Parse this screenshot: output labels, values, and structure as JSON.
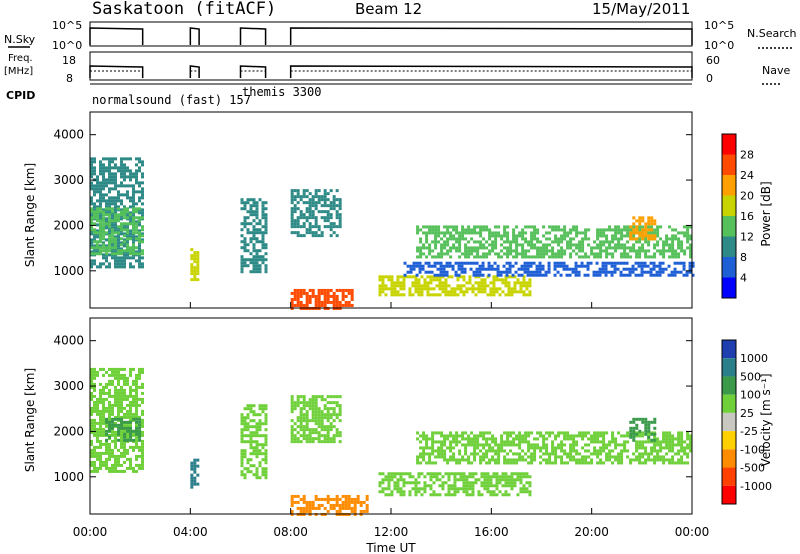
{
  "header": {
    "title": "Saskatoon (fitACF)",
    "beam": "Beam 12",
    "date": "15/May/2011"
  },
  "status_panels": {
    "nsky_label": "N.Sky",
    "nsearch_label": "N.Search",
    "freq_label_1": "Freq.",
    "freq_label_2": "[MHz]",
    "nave_label": "Nave",
    "cpid_label": "CPID",
    "left_ticks_top": [
      "10^5",
      "10^0"
    ],
    "right_ticks_top": [
      "10^5",
      "10^0"
    ],
    "left_ticks_freq": [
      "18",
      "8"
    ],
    "right_ticks_nave": [
      "60",
      "0"
    ],
    "cpid_entries": [
      {
        "label": "normalsound (fast) 157",
        "start_hour": 0.0
      },
      {
        "label": "themis 3300",
        "start_hour": 6.0
      }
    ],
    "operating_intervals": [
      [
        0.0,
        2.1
      ],
      [
        4.0,
        4.35
      ],
      [
        6.0,
        7.0
      ],
      [
        8.0,
        24.0
      ]
    ]
  },
  "chart_data": [
    {
      "type": "heatmap",
      "name": "power",
      "ylabel": "Slant Range [km]",
      "yticks": [
        1000,
        2000,
        3000,
        4000
      ],
      "ylim": [
        180,
        4500
      ],
      "xlim": [
        0,
        24
      ],
      "colorbar_label": "Power [dB]",
      "colorbar_ticks": [
        "4",
        "8",
        "12",
        "16",
        "20",
        "24",
        "28"
      ],
      "colorbar_colors": [
        "#0000ff",
        "#1f5fd6",
        "#2d8a86",
        "#56c05a",
        "#c8d400",
        "#ffa000",
        "#ff4a00",
        "#ff0000"
      ],
      "regions": [
        {
          "t": [
            0.0,
            2.1
          ],
          "r": [
            1100,
            3500
          ],
          "v": 9
        },
        {
          "t": [
            0.0,
            2.1
          ],
          "r": [
            1400,
            2400
          ],
          "v": 13
        },
        {
          "t": [
            4.0,
            4.3
          ],
          "r": [
            800,
            1500
          ],
          "v": 16
        },
        {
          "t": [
            6.0,
            7.0
          ],
          "r": [
            1000,
            2600
          ],
          "v": 11
        },
        {
          "t": [
            8.0,
            10.5
          ],
          "r": [
            200,
            600
          ],
          "v": 26
        },
        {
          "t": [
            8.0,
            10.0
          ],
          "r": [
            1800,
            2800
          ],
          "v": 11
        },
        {
          "t": [
            11.5,
            17.5
          ],
          "r": [
            450,
            900
          ],
          "v": 18
        },
        {
          "t": [
            13.0,
            24.0
          ],
          "r": [
            1300,
            2000
          ],
          "v": 15
        },
        {
          "t": [
            21.5,
            22.5
          ],
          "r": [
            1700,
            2200
          ],
          "v": 22
        },
        {
          "t": [
            12.5,
            24.0
          ],
          "r": [
            900,
            1200
          ],
          "v": 7
        }
      ]
    },
    {
      "type": "heatmap",
      "name": "velocity",
      "ylabel": "Slant Range [km]",
      "yticks": [
        1000,
        2000,
        3000,
        4000
      ],
      "ylim": [
        180,
        4500
      ],
      "xlim": [
        0,
        24
      ],
      "xlabel": "Time UT",
      "xticks": [
        "00:00",
        "04:00",
        "08:00",
        "12:00",
        "16:00",
        "20:00",
        "00:00"
      ],
      "colorbar_label": "Velocity [m s⁻¹]",
      "colorbar_ticks": [
        "1000",
        "500",
        "100",
        "25",
        "-25",
        "-100",
        "-500",
        "-1000"
      ],
      "colorbar_colors": [
        "#1f3fb0",
        "#2a7f8a",
        "#3a9a4a",
        "#6fd03a",
        "#c8c8c0",
        "#ffd000",
        "#ff8c00",
        "#ff4000",
        "#ff0000"
      ],
      "regions": [
        {
          "t": [
            0.0,
            2.1
          ],
          "r": [
            1100,
            3400
          ],
          "v": 25
        },
        {
          "t": [
            0.6,
            2.0
          ],
          "r": [
            1800,
            2300
          ],
          "v": 200
        },
        {
          "t": [
            4.0,
            4.3
          ],
          "r": [
            800,
            1400
          ],
          "v": 400
        },
        {
          "t": [
            6.0,
            7.0
          ],
          "r": [
            1000,
            2600
          ],
          "v": 25
        },
        {
          "t": [
            8.0,
            11.0
          ],
          "r": [
            200,
            600
          ],
          "v": -200
        },
        {
          "t": [
            8.0,
            10.0
          ],
          "r": [
            1800,
            2800
          ],
          "v": 25
        },
        {
          "t": [
            11.5,
            17.5
          ],
          "r": [
            600,
            1100
          ],
          "v": 25
        },
        {
          "t": [
            13.0,
            24.0
          ],
          "r": [
            1300,
            2000
          ],
          "v": 25
        },
        {
          "t": [
            21.5,
            22.5
          ],
          "r": [
            1800,
            2300
          ],
          "v": 200
        }
      ]
    }
  ]
}
